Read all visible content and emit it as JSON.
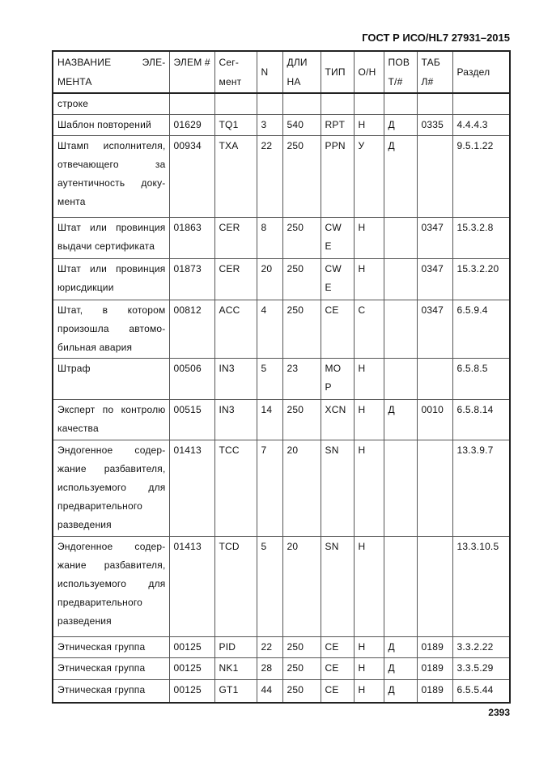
{
  "header": {
    "title": "ГОСТ Р ИСО/HL7 27931–2015"
  },
  "footer": {
    "page_number": "2393"
  },
  "table": {
    "columns": [
      "НАЗВАНИЕ ЭЛЕ-МЕНТА",
      "ЭЛЕМ #",
      "Сег-мент",
      "N",
      "ДЛИ НА",
      "ТИП",
      "О/Н",
      "ПОВ Т/#",
      "ТАБ Л#",
      "Раздел"
    ],
    "rows": [
      [
        "строке",
        "",
        "",
        "",
        "",
        "",
        "",
        "",
        "",
        ""
      ],
      [
        "Шаблон повторений",
        "01629",
        "TQ1",
        "3",
        "540",
        "RPT",
        "Н",
        "Д",
        "0335",
        "4.4.4.3"
      ],
      [
        "Штамп исполнителя, отвечающего за аутентичность доку-мента",
        "00934",
        "TXA",
        "22",
        "250",
        "PPN",
        "У",
        "Д",
        "",
        "9.5.1.22"
      ],
      [
        "Штат или провинция выдачи сертификата",
        "01863",
        "CER",
        "8",
        "250",
        "CW E",
        "Н",
        "",
        "0347",
        "15.3.2.8"
      ],
      [
        "Штат или провинция юрисдикции",
        "01873",
        "CER",
        "20",
        "250",
        "CW E",
        "Н",
        "",
        "0347",
        "15.3.2.20"
      ],
      [
        "Штат, в котором произошла автомо-бильная авария",
        "00812",
        "ACC",
        "4",
        "250",
        "CE",
        "С",
        "",
        "0347",
        "6.5.9.4"
      ],
      [
        "Штраф",
        "00506",
        "IN3",
        "5",
        "23",
        "MO P",
        "Н",
        "",
        "",
        "6.5.8.5"
      ],
      [
        "Эксперт по контролю качества",
        "00515",
        "IN3",
        "14",
        "250",
        "XCN",
        "Н",
        "Д",
        "0010",
        "6.5.8.14"
      ],
      [
        "Эндогенное содер-жание разбавителя, используемого для предварительного разведения",
        "01413",
        "TCC",
        "7",
        "20",
        "SN",
        "Н",
        "",
        "",
        "13.3.9.7"
      ],
      [
        "Эндогенное содер-жание разбавителя, используемого для предварительного разведения",
        "01413",
        "TCD",
        "5",
        "20",
        "SN",
        "Н",
        "",
        "",
        "13.3.10.5"
      ],
      [
        "Этническая группа",
        "00125",
        "PID",
        "22",
        "250",
        "CE",
        "Н",
        "Д",
        "0189",
        "3.3.2.22"
      ],
      [
        "Этническая группа",
        "00125",
        "NK1",
        "28",
        "250",
        "CE",
        "Н",
        "Д",
        "0189",
        "3.3.5.29"
      ],
      [
        "Этническая группа",
        "00125",
        "GT1",
        "44",
        "250",
        "CE",
        "Н",
        "Д",
        "0189",
        "6.5.5.44"
      ]
    ]
  }
}
